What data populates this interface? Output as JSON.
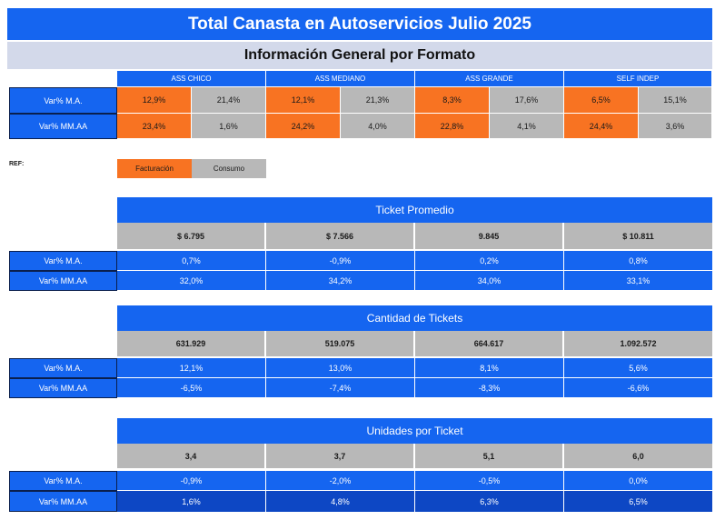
{
  "title": "Total Canasta en Autoservicios Julio 2025",
  "subtitle": "Información General por Formato",
  "formats": [
    "ASS CHICO",
    "ASS MEDIANO",
    "ASS GRANDE",
    "SELF INDEP"
  ],
  "general": {
    "rows": [
      {
        "label": "Var% M.A.",
        "values": [
          [
            "12,9%",
            "21,4%"
          ],
          [
            "12,1%",
            "21,3%"
          ],
          [
            "8,3%",
            "17,6%"
          ],
          [
            "6,5%",
            "15,1%"
          ]
        ]
      },
      {
        "label": "Var% MM.AA",
        "values": [
          [
            "23,4%",
            "1,6%"
          ],
          [
            "24,2%",
            "4,0%"
          ],
          [
            "22,8%",
            "4,1%"
          ],
          [
            "24,4%",
            "3,6%"
          ]
        ]
      }
    ]
  },
  "ref": {
    "label": "REF:",
    "facturacion": "Facturación",
    "consumo": "Consumo"
  },
  "colors": {
    "blue": "#1565f0",
    "dark_blue": "#0d47c4",
    "orange": "#f87322",
    "gray": "#b8b8b8",
    "lavender": "#d3d9ea"
  },
  "sections": [
    {
      "title": "Ticket Promedio",
      "values": [
        "$ 6.795",
        "$ 7.566",
        "9.845",
        "$ 10.811"
      ],
      "rows": [
        {
          "label": "Var% M.A.",
          "values": [
            "0,7%",
            "-0,9%",
            "0,2%",
            "0,8%"
          ]
        },
        {
          "label": "Var% MM.AA",
          "values": [
            "32,0%",
            "34,2%",
            "34,0%",
            "33,1%"
          ]
        }
      ]
    },
    {
      "title": "Cantidad de Tickets",
      "values": [
        "631.929",
        "519.075",
        "664.617",
        "1.092.572"
      ],
      "rows": [
        {
          "label": "Var% M.A.",
          "values": [
            "12,1%",
            "13,0%",
            "8,1%",
            "5,6%"
          ]
        },
        {
          "label": "Var% MM.AA",
          "values": [
            "-6,5%",
            "-7,4%",
            "-8,3%",
            "-6,6%"
          ]
        }
      ]
    },
    {
      "title": "Unidades por Ticket",
      "values": [
        "3,4",
        "3,7",
        "5,1",
        "6,0"
      ],
      "rows": [
        {
          "label": "Var% M.A.",
          "values": [
            "-0,9%",
            "-2,0%",
            "-0,5%",
            "0,0%"
          ]
        },
        {
          "label": "Var% MM.AA",
          "values": [
            "1,6%",
            "4,8%",
            "6,3%",
            "6,5%"
          ]
        }
      ]
    }
  ]
}
